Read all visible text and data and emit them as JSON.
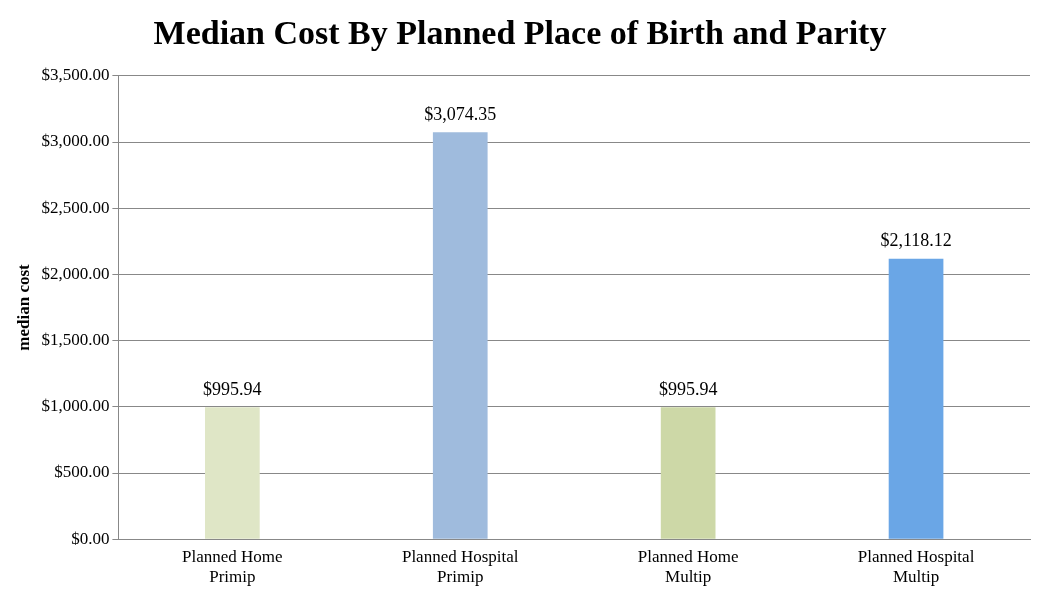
{
  "chart_data": {
    "type": "bar",
    "title": "Median Cost By Planned Place of Birth and Parity",
    "ylabel": "median cost",
    "categories": [
      "Planned Home Primip",
      "Planned Hospital Primip",
      "Planned Home Multip",
      "Planned Hospital Multip"
    ],
    "values": [
      995.94,
      3074.35,
      995.94,
      2118.12
    ],
    "colors": [
      "#dfe6c6",
      "#9fbbdd",
      "#cdd8a7",
      "#6aa6e6"
    ],
    "value_labels": [
      "$995.94",
      "$3,074.35",
      "$995.94",
      "$2,118.12"
    ],
    "ylim": [
      0,
      3500
    ],
    "yticks": [
      {
        "value": 0,
        "label": "$0.00"
      },
      {
        "value": 500,
        "label": "$500.00"
      },
      {
        "value": 1000,
        "label": "$1,000.00"
      },
      {
        "value": 1500,
        "label": "$1,500.00"
      },
      {
        "value": 2000,
        "label": "$2,000.00"
      },
      {
        "value": 2500,
        "label": "$2,500.00"
      },
      {
        "value": 3000,
        "label": "$3,000.00"
      },
      {
        "value": 3500,
        "label": "$3,500.00"
      }
    ],
    "grid": "y"
  }
}
